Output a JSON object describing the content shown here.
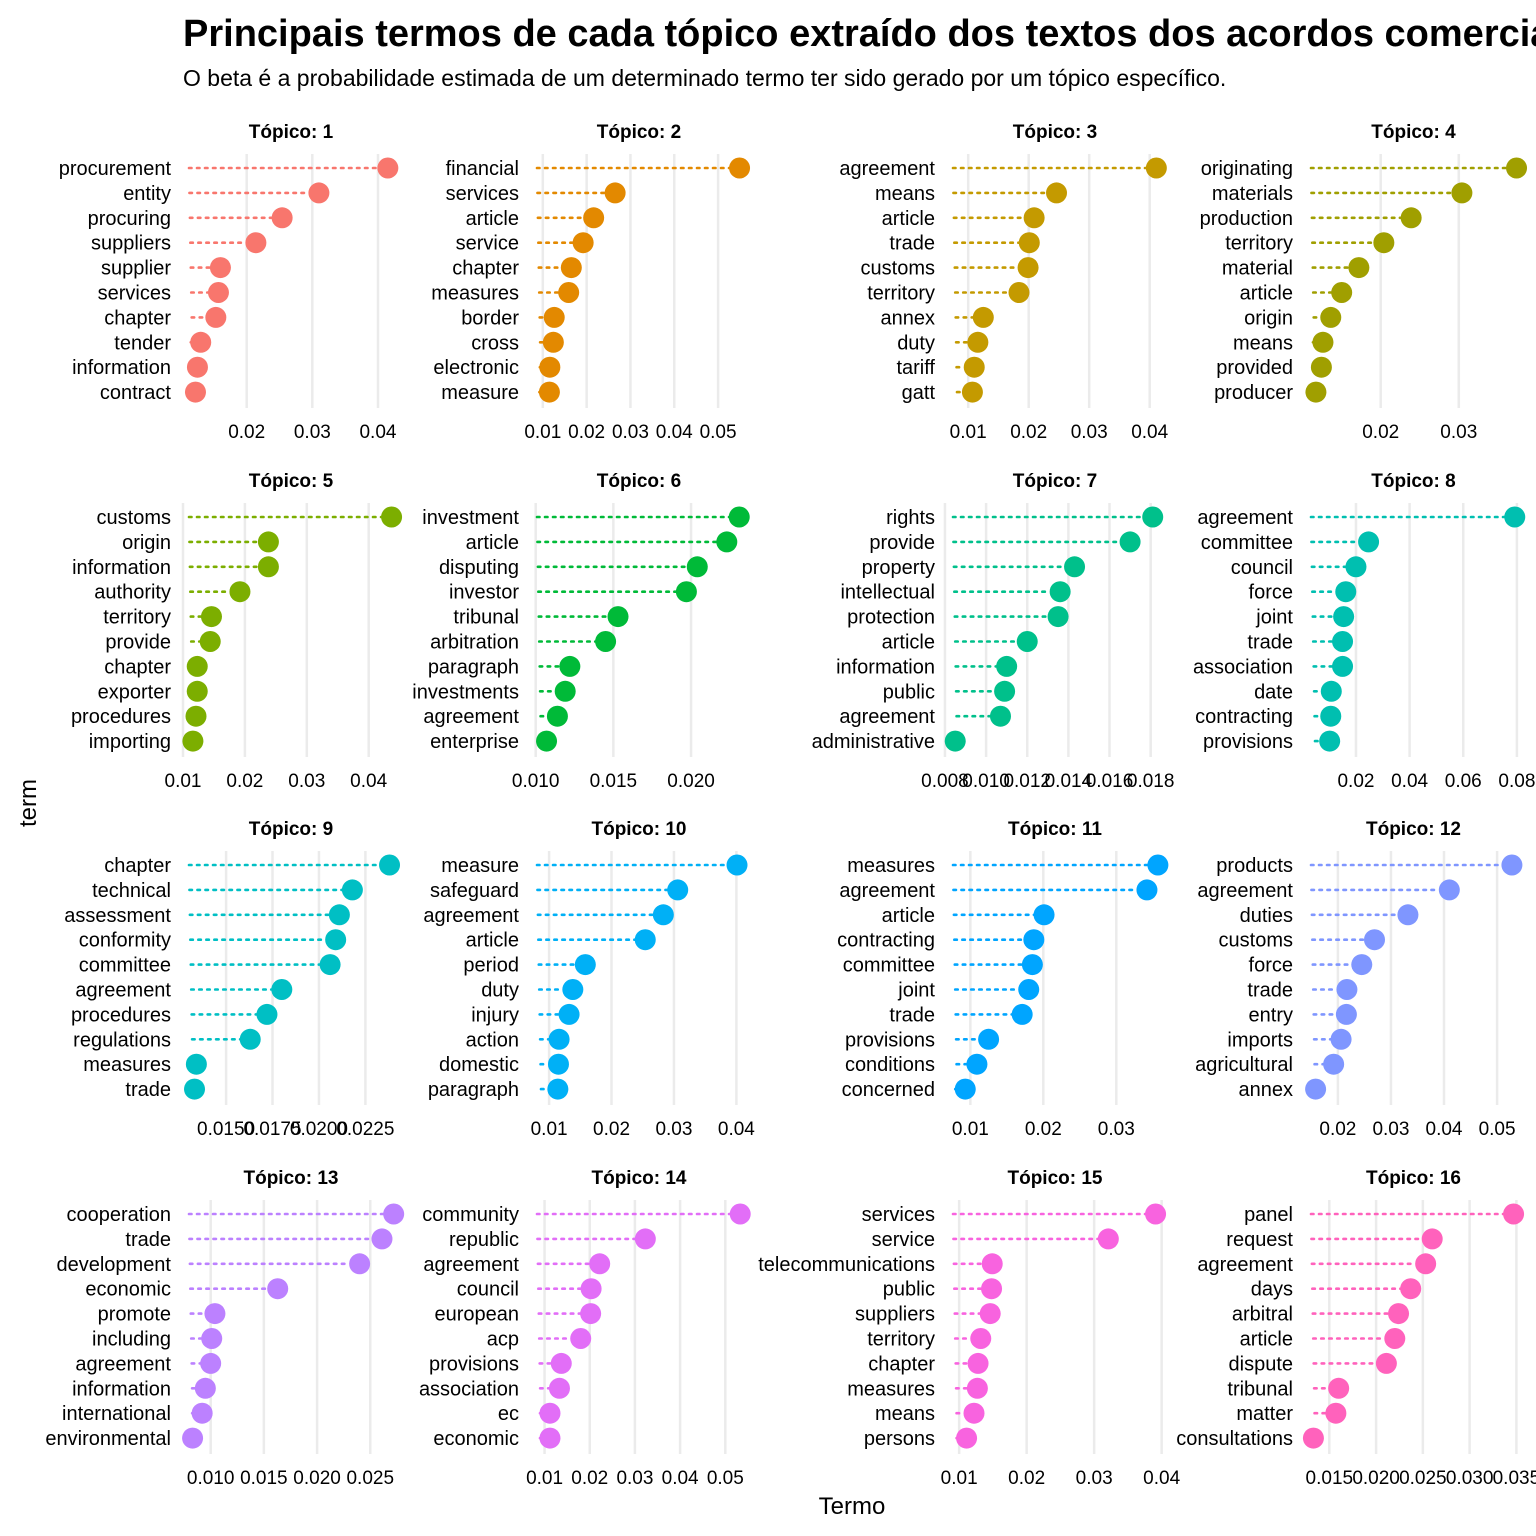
{
  "chart_data": {
    "type": "scatter",
    "title": "Principais termos de cada tópico extraído dos textos dos acordos comerciais",
    "subtitle": "O beta é a probabilidade estimada de um determinado termo ter sido gerado por um tópico específico.",
    "xlabel": "Termo",
    "ylabel": "term",
    "grid": true,
    "legend": "none",
    "panels": [
      {
        "label": "Tópico: 1",
        "color": "#F8766D",
        "ticks": [
          "0.02",
          "0.03",
          "0.04"
        ],
        "tick_values": [
          0.02,
          0.03,
          0.04
        ],
        "xlim": [
          0.0103,
          0.0432
        ],
        "terms": [
          "procurement",
          "entity",
          "procuring",
          "suppliers",
          "supplier",
          "services",
          "chapter",
          "tender",
          "information",
          "contract"
        ],
        "values": [
          0.0415,
          0.031,
          0.0254,
          0.0214,
          0.016,
          0.0157,
          0.0153,
          0.013,
          0.0125,
          0.0122
        ]
      },
      {
        "label": "Tópico: 2",
        "color": "#E38900",
        "ticks": [
          "0.01",
          "0.02",
          "0.03",
          "0.04",
          "0.05"
        ],
        "tick_values": [
          0.01,
          0.02,
          0.03,
          0.04,
          0.05
        ],
        "xlim": [
          0.0073,
          0.0566
        ],
        "terms": [
          "financial",
          "services",
          "article",
          "service",
          "chapter",
          "measures",
          "border",
          "cross",
          "electronic",
          "measure"
        ],
        "values": [
          0.0549,
          0.0265,
          0.0216,
          0.0192,
          0.0165,
          0.0159,
          0.0126,
          0.0124,
          0.0116,
          0.0115
        ]
      },
      {
        "label": "Tópico: 3",
        "color": "#C49A00",
        "ticks": [
          "0.01",
          "0.02",
          "0.03",
          "0.04"
        ],
        "tick_values": [
          0.01,
          0.02,
          0.03,
          0.04
        ],
        "xlim": [
          0.0065,
          0.0422
        ],
        "terms": [
          "agreement",
          "means",
          "article",
          "trade",
          "customs",
          "territory",
          "annex",
          "duty",
          "tariff",
          "gatt"
        ],
        "values": [
          0.0411,
          0.0246,
          0.0209,
          0.0201,
          0.0199,
          0.0184,
          0.0125,
          0.0116,
          0.011,
          0.0107
        ]
      },
      {
        "label": "Tópico: 4",
        "color": "#A09F00",
        "ticks": [
          "0.02",
          "0.03"
        ],
        "tick_values": [
          0.02,
          0.03
        ],
        "xlim": [
          0.0103,
          0.0381
        ],
        "terms": [
          "originating",
          "materials",
          "production",
          "territory",
          "material",
          "article",
          "origin",
          "means",
          "provided",
          "producer"
        ],
        "values": [
          0.0374,
          0.0304,
          0.0239,
          0.0204,
          0.0172,
          0.015,
          0.0136,
          0.0126,
          0.0124,
          0.0117
        ]
      },
      {
        "label": "Tópico: 5",
        "color": "#7CAE00",
        "ticks": [
          "0.01",
          "0.02",
          "0.03",
          "0.04"
        ],
        "tick_values": [
          0.01,
          0.02,
          0.03,
          0.04
        ],
        "xlim": [
          0.01,
          0.0449
        ],
        "terms": [
          "customs",
          "origin",
          "information",
          "authority",
          "territory",
          "provide",
          "chapter",
          "exporter",
          "procedures",
          "importing"
        ],
        "values": [
          0.0437,
          0.0238,
          0.0238,
          0.0192,
          0.0146,
          0.0144,
          0.0123,
          0.0123,
          0.0121,
          0.0116
        ]
      },
      {
        "label": "Tópico: 6",
        "color": "#00BA38",
        "ticks": [
          "0.010",
          "0.015",
          "0.020"
        ],
        "tick_values": [
          0.01,
          0.015,
          0.02
        ],
        "xlim": [
          0.0097,
          0.0236
        ],
        "terms": [
          "investment",
          "article",
          "disputing",
          "investor",
          "tribunal",
          "arbitration",
          "paragraph",
          "investments",
          "agreement",
          "enterprise"
        ],
        "values": [
          0.0231,
          0.0223,
          0.0204,
          0.0197,
          0.0153,
          0.0145,
          0.0122,
          0.0119,
          0.0114,
          0.0107
        ]
      },
      {
        "label": "Tópico: 7",
        "color": "#00C08B",
        "ticks": [
          "0.008",
          "0.010",
          "0.012",
          "0.014",
          "0.016",
          "0.018"
        ],
        "tick_values": [
          0.008,
          0.01,
          0.012,
          0.014,
          0.016,
          0.018
        ],
        "xlim": [
          0.0081,
          0.0186
        ],
        "terms": [
          "rights",
          "provide",
          "property",
          "intellectual",
          "protection",
          "article",
          "information",
          "public",
          "agreement",
          "administrative"
        ],
        "values": [
          0.0181,
          0.017,
          0.0143,
          0.0136,
          0.0135,
          0.012,
          0.011,
          0.0109,
          0.0107,
          0.0085
        ]
      },
      {
        "label": "Tópico: 8",
        "color": "#00BFB0",
        "ticks": [
          "0.02",
          "0.04",
          "0.06",
          "0.08"
        ],
        "tick_values": [
          0.02,
          0.04,
          0.06,
          0.08
        ],
        "xlim": [
          0.001,
          0.0819
        ],
        "terms": [
          "agreement",
          "committee",
          "council",
          "force",
          "joint",
          "trade",
          "association",
          "date",
          "contracting",
          "provisions"
        ],
        "values": [
          0.0792,
          0.0247,
          0.02,
          0.0162,
          0.0154,
          0.015,
          0.015,
          0.0108,
          0.0106,
          0.0102
        ]
      },
      {
        "label": "Tópico: 9",
        "color": "#00BFC4",
        "ticks": [
          "0.0150",
          "0.0175",
          "0.0200",
          "0.0225"
        ],
        "tick_values": [
          0.015,
          0.0175,
          0.02,
          0.0225
        ],
        "xlim": [
          0.01268,
          0.02431
        ],
        "terms": [
          "chapter",
          "technical",
          "assessment",
          "conformity",
          "committee",
          "agreement",
          "procedures",
          "regulations",
          "measures",
          "trade"
        ],
        "values": [
          0.0238,
          0.0218,
          0.0211,
          0.0209,
          0.0206,
          0.018,
          0.0172,
          0.0163,
          0.0134,
          0.0133
        ]
      },
      {
        "label": "Tópico: 10",
        "color": "#00B0F6",
        "ticks": [
          "0.01",
          "0.02",
          "0.03",
          "0.04"
        ],
        "tick_values": [
          0.01,
          0.02,
          0.03,
          0.04
        ],
        "xlim": [
          0.0071,
          0.0417
        ],
        "terms": [
          "measure",
          "safeguard",
          "agreement",
          "article",
          "period",
          "duty",
          "injury",
          "action",
          "domestic",
          "paragraph"
        ],
        "values": [
          0.0401,
          0.0306,
          0.0283,
          0.0254,
          0.0158,
          0.0138,
          0.0132,
          0.0116,
          0.0115,
          0.0114
        ]
      },
      {
        "label": "Tópico: 11",
        "color": "#00A5FF",
        "ticks": [
          "0.01",
          "0.02",
          "0.03"
        ],
        "tick_values": [
          0.01,
          0.02,
          0.03
        ],
        "xlim": [
          0.0068,
          0.0364
        ],
        "terms": [
          "measures",
          "agreement",
          "article",
          "contracting",
          "committee",
          "joint",
          "trade",
          "provisions",
          "conditions",
          "concerned"
        ],
        "values": [
          0.0357,
          0.0342,
          0.0201,
          0.0187,
          0.0185,
          0.018,
          0.0171,
          0.0125,
          0.0109,
          0.0093
        ]
      },
      {
        "label": "Tópico: 12",
        "color": "#7F96FF",
        "ticks": [
          "0.02",
          "0.03",
          "0.04",
          "0.05"
        ],
        "tick_values": [
          0.02,
          0.03,
          0.04,
          0.05
        ],
        "xlim": [
          0.0138,
          0.0547
        ],
        "terms": [
          "products",
          "agreement",
          "duties",
          "customs",
          "force",
          "trade",
          "entry",
          "imports",
          "agricultural",
          "annex"
        ],
        "values": [
          0.0528,
          0.041,
          0.0332,
          0.0269,
          0.0245,
          0.0217,
          0.0216,
          0.0206,
          0.0192,
          0.0158
        ]
      },
      {
        "label": "Tópico: 13",
        "color": "#BC81FF",
        "ticks": [
          "0.010",
          "0.015",
          "0.020",
          "0.025"
        ],
        "tick_values": [
          0.01,
          0.015,
          0.02,
          0.025
        ],
        "xlim": [
          0.0074,
          0.0277
        ],
        "terms": [
          "cooperation",
          "trade",
          "development",
          "economic",
          "promote",
          "including",
          "agreement",
          "information",
          "international",
          "environmental"
        ],
        "values": [
          0.0272,
          0.0261,
          0.024,
          0.0163,
          0.0104,
          0.0101,
          0.01,
          0.0095,
          0.0092,
          0.0083
        ]
      },
      {
        "label": "Tópico: 14",
        "color": "#E26EF7",
        "ticks": [
          "0.01",
          "0.02",
          "0.03",
          "0.04",
          "0.05"
        ],
        "tick_values": [
          0.01,
          0.02,
          0.03,
          0.04,
          0.05
        ],
        "xlim": [
          0.007,
          0.0548
        ],
        "terms": [
          "community",
          "republic",
          "agreement",
          "council",
          "european",
          "acp",
          "provisions",
          "association",
          "ec",
          "economic"
        ],
        "values": [
          0.0533,
          0.0323,
          0.0222,
          0.0203,
          0.0202,
          0.018,
          0.0137,
          0.0133,
          0.0112,
          0.0112
        ]
      },
      {
        "label": "Tópico: 15",
        "color": "#F863DF",
        "ticks": [
          "0.01",
          "0.02",
          "0.03",
          "0.04"
        ],
        "tick_values": [
          0.01,
          0.02,
          0.03,
          0.04
        ],
        "xlim": [
          0.0082,
          0.0402
        ],
        "terms": [
          "services",
          "service",
          "telecommunications",
          "public",
          "suppliers",
          "territory",
          "chapter",
          "measures",
          "means",
          "persons"
        ],
        "values": [
          0.0391,
          0.0321,
          0.0149,
          0.0148,
          0.0146,
          0.0132,
          0.0128,
          0.0127,
          0.0122,
          0.0111
        ]
      },
      {
        "label": "Tópico: 16",
        "color": "#FF62BC",
        "ticks": [
          "0.015",
          "0.020",
          "0.025",
          "0.030",
          "0.035"
        ],
        "tick_values": [
          0.015,
          0.02,
          0.025,
          0.03,
          0.035
        ],
        "xlim": [
          0.0124,
          0.0356
        ],
        "terms": [
          "panel",
          "request",
          "agreement",
          "days",
          "arbitral",
          "article",
          "dispute",
          "tribunal",
          "matter",
          "consultations"
        ],
        "values": [
          0.0347,
          0.026,
          0.0253,
          0.0237,
          0.0224,
          0.022,
          0.0211,
          0.016,
          0.0157,
          0.0133
        ]
      }
    ]
  }
}
